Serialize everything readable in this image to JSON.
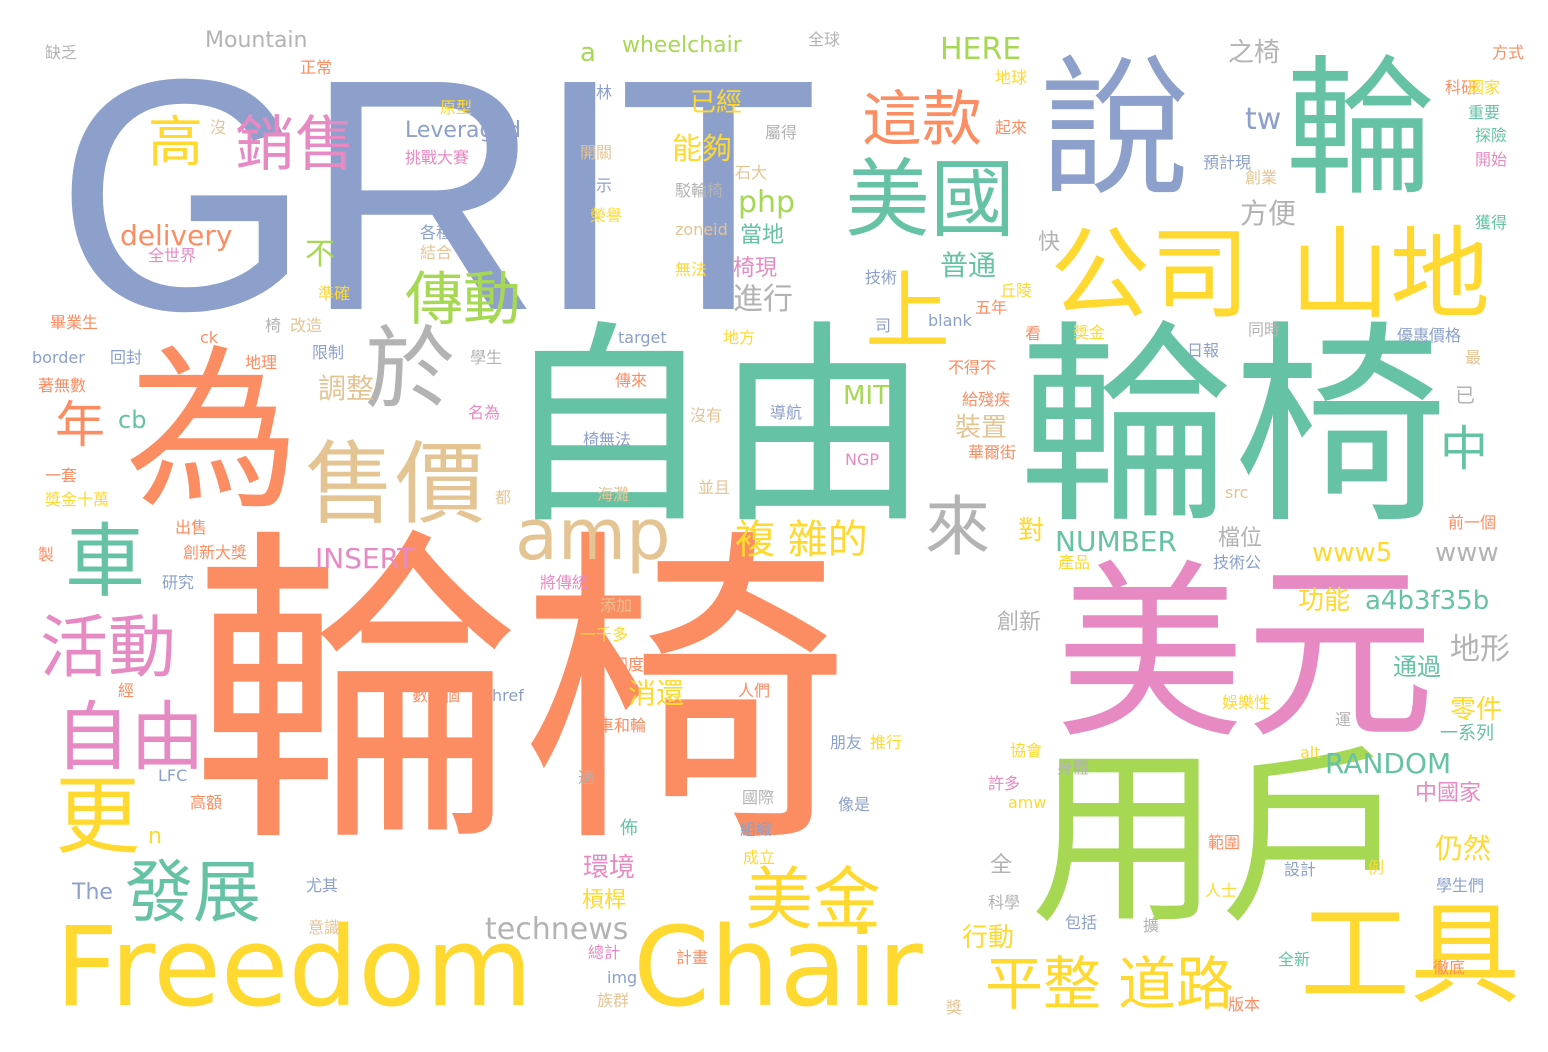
{
  "colors": {
    "background": "#ffffff",
    "palette": {
      "orange": "#FC8D62",
      "blue": "#8DA0CB",
      "teal": "#66C2A5",
      "pink": "#E78AC3",
      "green": "#A6D854",
      "yellow": "#FFD92F",
      "tan": "#E5C494",
      "gray": "#B3B3B3"
    }
  },
  "words": [
    {
      "text": "輪椅",
      "color": "orange"
    },
    {
      "text": "GRIT",
      "color": "blue"
    },
    {
      "text": "自由",
      "color": "teal"
    },
    {
      "text": "輪椅",
      "color": "teal"
    },
    {
      "text": "美元",
      "color": "pink"
    },
    {
      "text": "用戶",
      "color": "green"
    },
    {
      "text": "為",
      "color": "orange"
    },
    {
      "text": "說",
      "color": "blue"
    },
    {
      "text": "輪",
      "color": "teal"
    },
    {
      "text": "Freedom",
      "color": "yellow"
    },
    {
      "text": "Chair",
      "color": "yellow"
    },
    {
      "text": "工具",
      "color": "yellow"
    },
    {
      "text": "公司",
      "color": "yellow"
    },
    {
      "text": "山地",
      "color": "yellow"
    },
    {
      "text": "美國",
      "color": "teal"
    },
    {
      "text": "上",
      "color": "yellow"
    },
    {
      "text": "於",
      "color": "gray"
    },
    {
      "text": "售價",
      "color": "tan"
    },
    {
      "text": "amp",
      "color": "tan"
    },
    {
      "text": "車",
      "color": "teal"
    },
    {
      "text": "活動",
      "color": "pink"
    },
    {
      "text": "自由",
      "color": "pink"
    },
    {
      "text": "更",
      "color": "yellow"
    },
    {
      "text": "發展",
      "color": "teal"
    },
    {
      "text": "美金",
      "color": "yellow"
    },
    {
      "text": "平整",
      "color": "yellow"
    },
    {
      "text": "道路",
      "color": "yellow"
    },
    {
      "text": "傳動",
      "color": "green"
    },
    {
      "text": "這款",
      "color": "orange"
    },
    {
      "text": "銷售",
      "color": "pink"
    },
    {
      "text": "高",
      "color": "yellow"
    },
    {
      "text": "年",
      "color": "orange"
    },
    {
      "text": "來",
      "color": "gray"
    },
    {
      "text": "中",
      "color": "teal"
    },
    {
      "text": "複 雜的",
      "color": "yellow"
    },
    {
      "text": "technews",
      "color": "gray"
    },
    {
      "text": "Mountain",
      "color": "gray"
    },
    {
      "text": "wheelchair",
      "color": "green"
    },
    {
      "text": "Leveraged",
      "color": "blue"
    },
    {
      "text": "delivery",
      "color": "orange"
    },
    {
      "text": "HERE",
      "color": "green"
    },
    {
      "text": "php",
      "color": "green"
    },
    {
      "text": "tw",
      "color": "blue"
    },
    {
      "text": "a",
      "color": "green"
    },
    {
      "text": "之椅",
      "color": "gray"
    },
    {
      "text": "已經",
      "color": "yellow"
    },
    {
      "text": "能夠",
      "color": "yellow"
    },
    {
      "text": "方便",
      "color": "gray"
    },
    {
      "text": "當地",
      "color": "teal"
    },
    {
      "text": "椅現",
      "color": "pink"
    },
    {
      "text": "普通",
      "color": "teal"
    },
    {
      "text": "進行",
      "color": "gray"
    },
    {
      "text": "快",
      "color": "gray"
    },
    {
      "text": "不",
      "color": "green"
    },
    {
      "text": "調整",
      "color": "tan"
    },
    {
      "text": "MIT",
      "color": "green"
    },
    {
      "text": "裝置",
      "color": "tan"
    },
    {
      "text": "cb",
      "color": "teal"
    },
    {
      "text": "NUMBER",
      "color": "teal"
    },
    {
      "text": "INSERT",
      "color": "pink"
    },
    {
      "text": "www5",
      "color": "yellow"
    },
    {
      "text": "www",
      "color": "gray"
    },
    {
      "text": "a4b3f35b",
      "color": "teal"
    },
    {
      "text": "功能",
      "color": "yellow"
    },
    {
      "text": "對",
      "color": "yellow"
    },
    {
      "text": "檔位",
      "color": "gray"
    },
    {
      "text": "創新",
      "color": "gray"
    },
    {
      "text": "地形",
      "color": "gray"
    },
    {
      "text": "消還",
      "color": "yellow"
    },
    {
      "text": "通過",
      "color": "teal"
    },
    {
      "text": "零件",
      "color": "yellow"
    },
    {
      "text": "一系列",
      "color": "teal"
    },
    {
      "text": "RANDOM",
      "color": "teal"
    },
    {
      "text": "中國家",
      "color": "pink"
    },
    {
      "text": "仍然",
      "color": "yellow"
    },
    {
      "text": "環境",
      "color": "pink"
    },
    {
      "text": "n",
      "color": "yellow"
    },
    {
      "text": "佈",
      "color": "teal"
    },
    {
      "text": "槓桿",
      "color": "yellow"
    },
    {
      "text": "行動",
      "color": "yellow"
    },
    {
      "text": "全",
      "color": "gray"
    },
    {
      "text": "The",
      "color": "blue"
    },
    {
      "text": "缺乏",
      "color": "gray"
    },
    {
      "text": "全球",
      "color": "gray"
    },
    {
      "text": "方式",
      "color": "orange"
    },
    {
      "text": "正常",
      "color": "orange"
    },
    {
      "text": "原型",
      "color": "yellow"
    },
    {
      "text": "森林",
      "color": "blue"
    },
    {
      "text": "地球",
      "color": "yellow"
    },
    {
      "text": "科研",
      "color": "orange"
    },
    {
      "text": "國家",
      "color": "yellow"
    },
    {
      "text": "沒",
      "color": "tan"
    },
    {
      "text": "挑戰大賽",
      "color": "pink"
    },
    {
      "text": "開關",
      "color": "tan"
    },
    {
      "text": "表示",
      "color": "blue"
    },
    {
      "text": "駁輪椅",
      "color": "gray"
    },
    {
      "text": "石大",
      "color": "tan"
    },
    {
      "text": "屬得",
      "color": "gray"
    },
    {
      "text": "起來",
      "color": "orange"
    },
    {
      "text": "預計現",
      "color": "blue"
    },
    {
      "text": "重要",
      "color": "teal"
    },
    {
      "text": "探險",
      "color": "teal"
    },
    {
      "text": "開始",
      "color": "pink"
    },
    {
      "text": "創業",
      "color": "tan"
    },
    {
      "text": "獲得",
      "color": "teal"
    },
    {
      "text": "榮譽",
      "color": "yellow"
    },
    {
      "text": "各種",
      "color": "blue"
    },
    {
      "text": "結合",
      "color": "tan"
    },
    {
      "text": "全世界",
      "color": "pink"
    },
    {
      "text": "zoneid",
      "color": "tan"
    },
    {
      "text": "無法",
      "color": "yellow"
    },
    {
      "text": "技術",
      "color": "blue"
    },
    {
      "text": "丘陵",
      "color": "yellow"
    },
    {
      "text": "五年",
      "color": "orange"
    },
    {
      "text": "同時",
      "color": "gray"
    },
    {
      "text": "準確",
      "color": "yellow"
    },
    {
      "text": "畢業生",
      "color": "orange"
    },
    {
      "text": "椅",
      "color": "gray"
    },
    {
      "text": "改造",
      "color": "tan"
    },
    {
      "text": "border",
      "color": "blue"
    },
    {
      "text": "ck",
      "color": "orange"
    },
    {
      "text": "回封",
      "color": "blue"
    },
    {
      "text": "地理",
      "color": "orange"
    },
    {
      "text": "限制",
      "color": "blue"
    },
    {
      "text": "學生",
      "color": "gray"
    },
    {
      "text": "target",
      "color": "blue"
    },
    {
      "text": "地方",
      "color": "yellow"
    },
    {
      "text": "司",
      "color": "blue"
    },
    {
      "text": "blank",
      "color": "blue"
    },
    {
      "text": "看",
      "color": "orange"
    },
    {
      "text": "獎金",
      "color": "yellow"
    },
    {
      "text": "優惠價格",
      "color": "blue"
    },
    {
      "text": "日報",
      "color": "blue"
    },
    {
      "text": "最",
      "color": "tan"
    },
    {
      "text": "不得不",
      "color": "orange"
    },
    {
      "text": "著無數",
      "color": "orange"
    },
    {
      "text": "傳來",
      "color": "orange"
    },
    {
      "text": "名為",
      "color": "pink"
    },
    {
      "text": "導航",
      "color": "blue"
    },
    {
      "text": "沒有",
      "color": "tan"
    },
    {
      "text": "已",
      "color": "gray"
    },
    {
      "text": "給殘疾",
      "color": "orange"
    },
    {
      "text": "椅無法",
      "color": "blue"
    },
    {
      "text": "華爾街",
      "color": "orange"
    },
    {
      "text": "NGP",
      "color": "pink"
    },
    {
      "text": "一套",
      "color": "orange"
    },
    {
      "text": "獎金十萬",
      "color": "yellow"
    },
    {
      "text": "海灘",
      "color": "tan"
    },
    {
      "text": "都",
      "color": "tan"
    },
    {
      "text": "並且",
      "color": "tan"
    },
    {
      "text": "src",
      "color": "tan"
    },
    {
      "text": "前一個",
      "color": "orange"
    },
    {
      "text": "出售",
      "color": "orange"
    },
    {
      "text": "製",
      "color": "orange"
    },
    {
      "text": "創新大獎",
      "color": "orange"
    },
    {
      "text": "研究",
      "color": "blue"
    },
    {
      "text": "將傳統",
      "color": "pink"
    },
    {
      "text": "技術公",
      "color": "blue"
    },
    {
      "text": "產品",
      "color": "yellow"
    },
    {
      "text": "添加",
      "color": "tan"
    },
    {
      "text": "一千多",
      "color": "yellow"
    },
    {
      "text": "印度",
      "color": "orange"
    },
    {
      "text": "經",
      "color": "orange"
    },
    {
      "text": "數十個",
      "color": "orange"
    },
    {
      "text": "href",
      "color": "blue"
    },
    {
      "text": "人們",
      "color": "orange"
    },
    {
      "text": "娛樂性",
      "color": "yellow"
    },
    {
      "text": "車和輪",
      "color": "orange"
    },
    {
      "text": "朋友",
      "color": "blue"
    },
    {
      "text": "推行",
      "color": "yellow"
    },
    {
      "text": "協會",
      "color": "yellow"
    },
    {
      "text": "運",
      "color": "gray"
    },
    {
      "text": "LFC",
      "color": "blue"
    },
    {
      "text": "適",
      "color": "gray"
    },
    {
      "text": "身體",
      "color": "gray"
    },
    {
      "text": "alt",
      "color": "yellow"
    },
    {
      "text": "高額",
      "color": "orange"
    },
    {
      "text": "國際",
      "color": "gray"
    },
    {
      "text": "許多",
      "color": "pink"
    },
    {
      "text": "amw",
      "color": "yellow"
    },
    {
      "text": "像是",
      "color": "blue"
    },
    {
      "text": "組織",
      "color": "blue"
    },
    {
      "text": "範圍",
      "color": "orange"
    },
    {
      "text": "成立",
      "color": "yellow"
    },
    {
      "text": "設計",
      "color": "blue"
    },
    {
      "text": "例",
      "color": "yellow"
    },
    {
      "text": "學生們",
      "color": "blue"
    },
    {
      "text": "尤其",
      "color": "blue"
    },
    {
      "text": "人士",
      "color": "yellow"
    },
    {
      "text": "科學",
      "color": "gray"
    },
    {
      "text": "包括",
      "color": "blue"
    },
    {
      "text": "擴",
      "color": "gray"
    },
    {
      "text": "意識",
      "color": "tan"
    },
    {
      "text": "總計",
      "color": "pink"
    },
    {
      "text": "計畫",
      "color": "orange"
    },
    {
      "text": "img",
      "color": "blue"
    },
    {
      "text": "全新",
      "color": "teal"
    },
    {
      "text": "徹底",
      "color": "orange"
    },
    {
      "text": "族群",
      "color": "tan"
    },
    {
      "text": "版本",
      "color": "orange"
    },
    {
      "text": "獎",
      "color": "tan"
    }
  ]
}
